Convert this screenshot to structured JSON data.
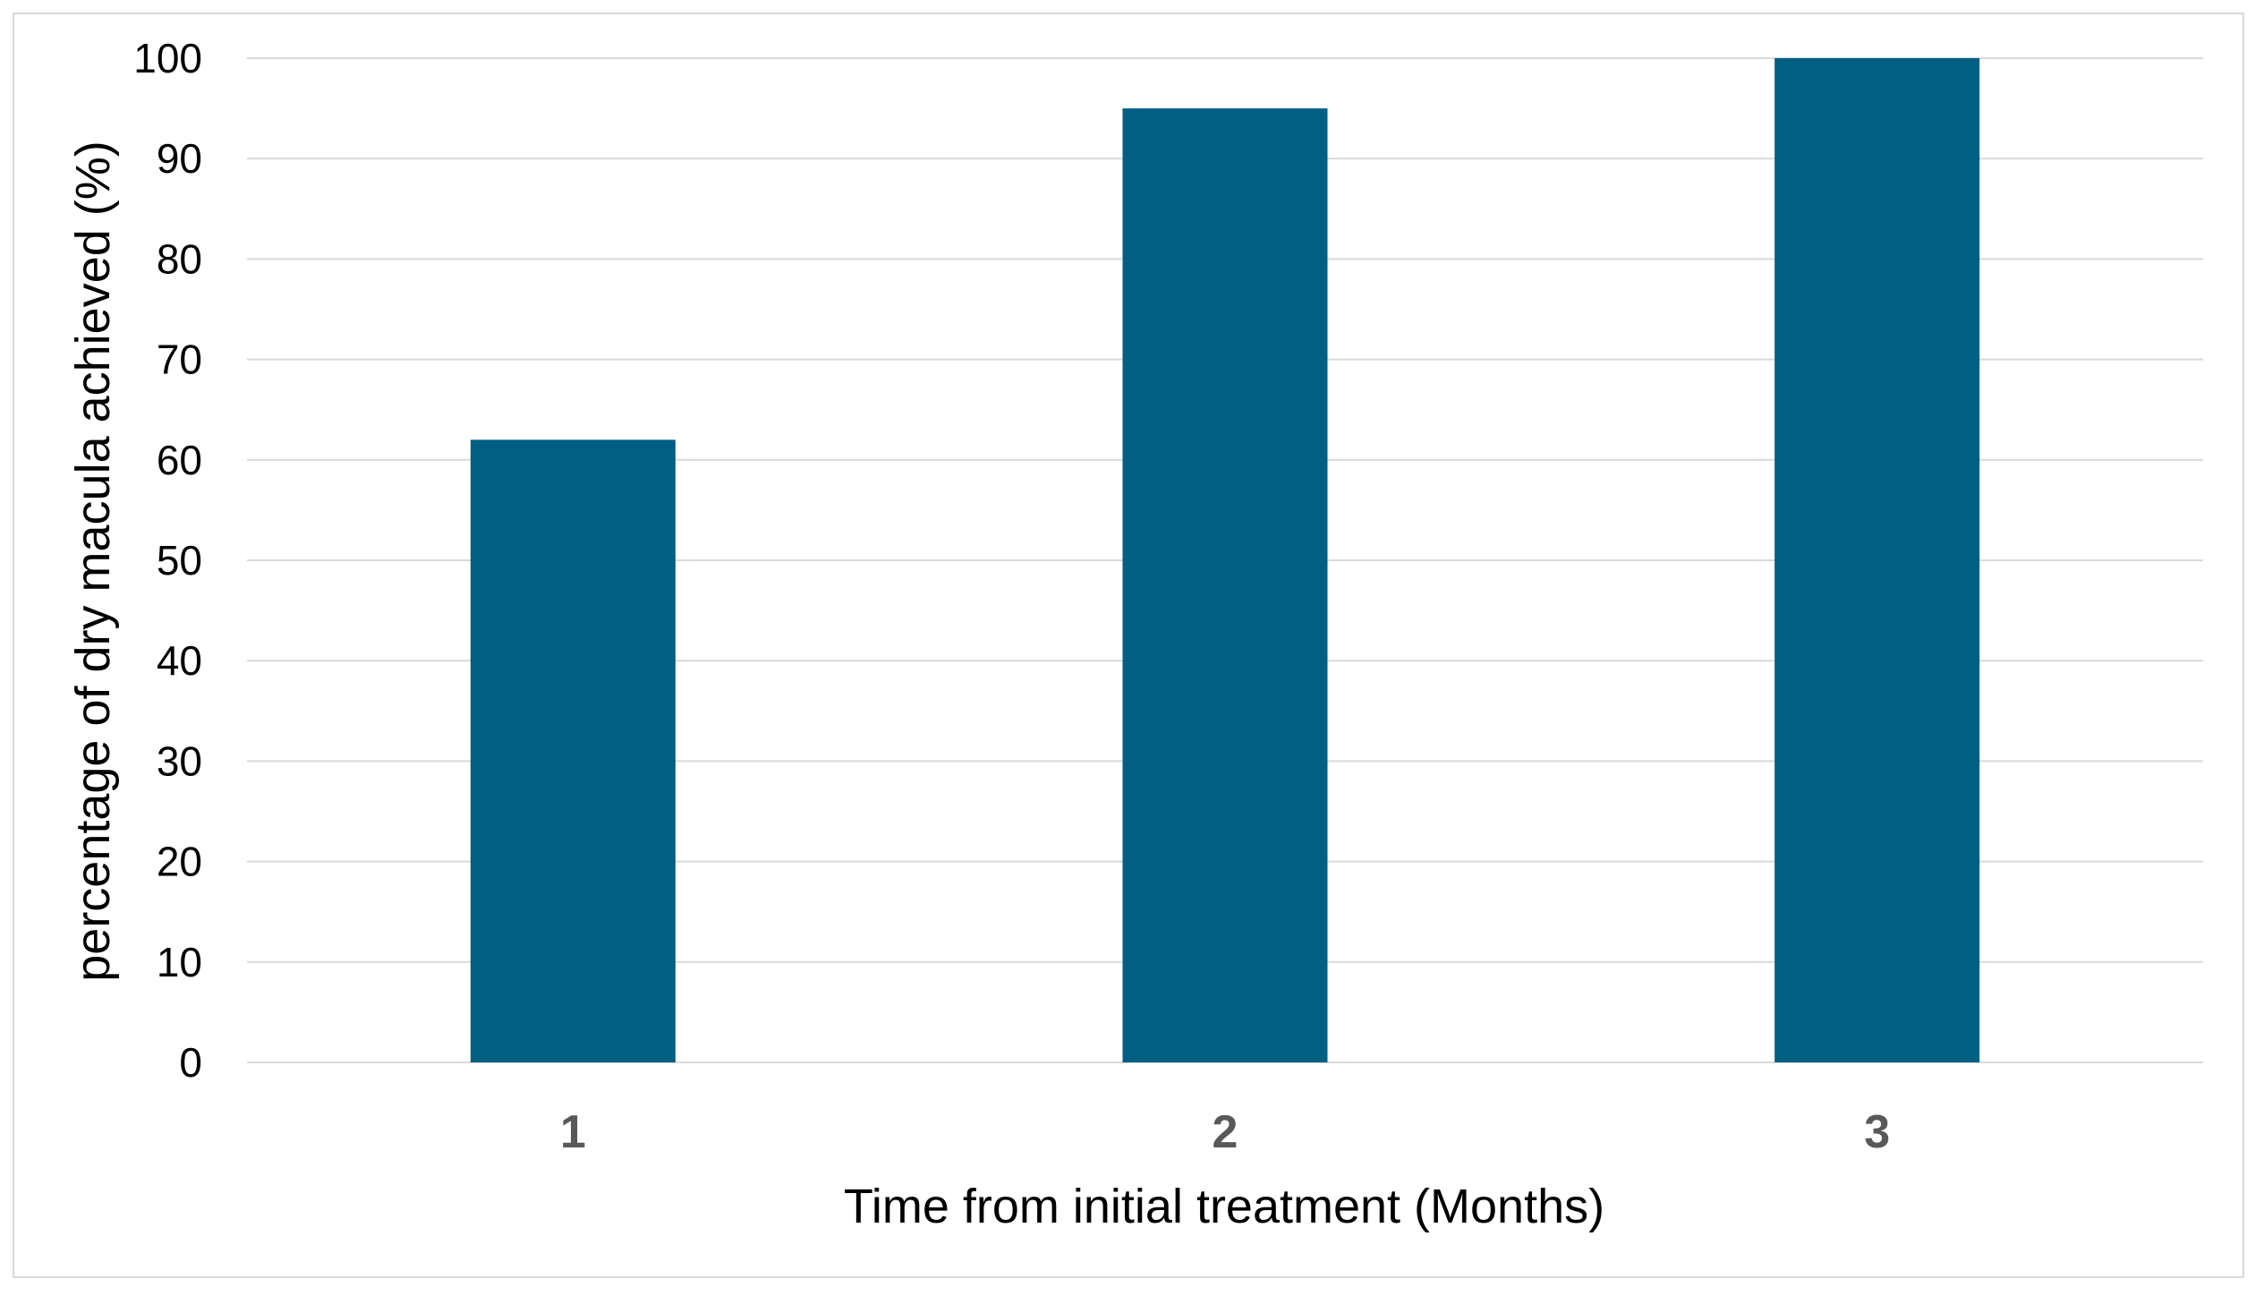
{
  "colors": {
    "bar": "#005f82",
    "gridline": "#d9d9d9",
    "frame": "#d9d9d9",
    "tick_x": "#595959",
    "tick_y": "#000000"
  },
  "chart_data": {
    "type": "bar",
    "title": "",
    "xlabel": "Time from initial treatment (Months)",
    "ylabel": "percentage of dry macula achieved  (%)",
    "categories": [
      "1",
      "2",
      "3"
    ],
    "values": [
      62,
      95,
      100
    ],
    "ylim": [
      0,
      100
    ],
    "yticks": [
      0,
      10,
      20,
      30,
      40,
      50,
      60,
      70,
      80,
      90,
      100
    ],
    "grid": true,
    "legend": "none"
  }
}
